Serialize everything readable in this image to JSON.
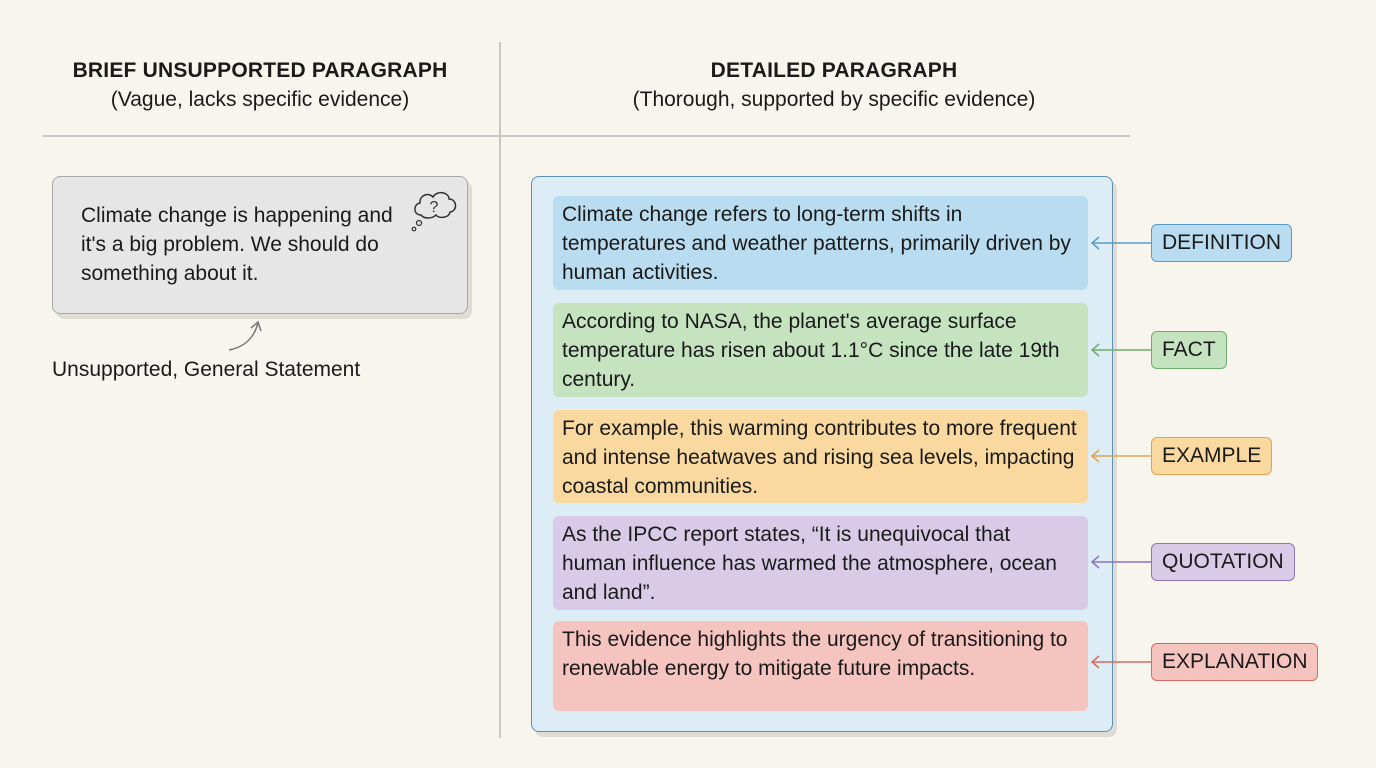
{
  "left": {
    "title": "BRIEF UNSUPPORTED PARAGRAPH",
    "subtitle": "(Vague, lacks specific evidence)",
    "paragraph": "Climate change is happening and it's a big problem. We should do something about it.",
    "icon": "thought-bubble-question-icon",
    "caption": "Unsupported, General Statement"
  },
  "right": {
    "title": "DETAILED PARAGRAPH",
    "subtitle": "(Thorough, supported by specific evidence)",
    "blocks": [
      {
        "text": "Climate change refers to long-term shifts in temperatures and weather patterns, primarily driven by human activities.",
        "label": "DEFINITION",
        "bg": "#b9dcf0",
        "border": "#5a9ac4"
      },
      {
        "text": "According to NASA, the planet's average surface temperature has risen about 1.1°C since the late 19th century.",
        "label": "FACT",
        "bg": "#c5e3bf",
        "border": "#6eae6a"
      },
      {
        "text": "For example, this warming contributes to more frequent and intense heatwaves and rising sea levels, impacting coastal communities.",
        "label": "EXAMPLE",
        "bg": "#fad9a0",
        "border": "#e0a450"
      },
      {
        "text": "As the IPCC report states, “It is unequivocal that human influence has warmed the atmosphere, ocean and land”.",
        "label": "QUOTATION",
        "bg": "#d9cbe8",
        "border": "#8d75b8"
      },
      {
        "text": "This evidence highlights the urgency of transitioning to renewable energy to mitigate future impacts.",
        "label": "EXPLANATION",
        "bg": "#f5c4be",
        "border": "#d96a60"
      }
    ]
  }
}
